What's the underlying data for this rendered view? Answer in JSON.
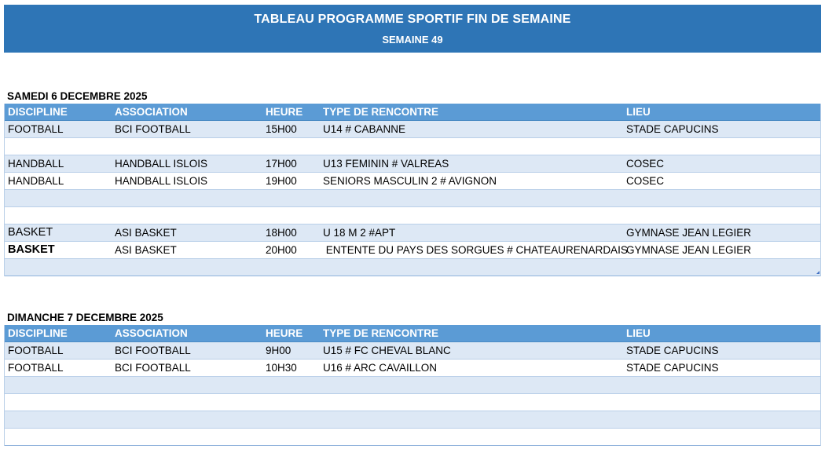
{
  "header": {
    "title": "TABLEAU PROGRAMME SPORTIF FIN DE SEMAINE",
    "subtitle": "SEMAINE 49"
  },
  "columns": {
    "discipline": "DISCIPLINE",
    "association": "ASSOCIATION",
    "heure": "HEURE",
    "type": "TYPE DE RENCONTRE",
    "lieu": "LIEU"
  },
  "saturday": {
    "title": "SAMEDI 6 DECEMBRE 2025",
    "rows": [
      {
        "discipline": "FOOTBALL",
        "association": "BCI FOOTBALL",
        "heure": "15H00",
        "type": "U14 # CABANNE",
        "lieu": "STADE CAPUCINS"
      },
      {
        "discipline": "",
        "association": "",
        "heure": "",
        "type": "",
        "lieu": ""
      },
      {
        "discipline": "HANDBALL",
        "association": "HANDBALL ISLOIS",
        "heure": "17H00",
        "type": "U13 FEMININ # VALREAS",
        "lieu": "COSEC"
      },
      {
        "discipline": "HANDBALL",
        "association": "HANDBALL ISLOIS",
        "heure": "19H00",
        "type": "SENIORS MASCULIN 2 # AVIGNON",
        "lieu": "COSEC"
      },
      {
        "discipline": "",
        "association": "",
        "heure": "",
        "type": "",
        "lieu": ""
      },
      {
        "discipline": "",
        "association": "",
        "heure": "",
        "type": "",
        "lieu": ""
      },
      {
        "discipline": "BASKET",
        "association": "ASI BASKET",
        "heure": "18H00",
        "type": "U 18 M 2 #APT",
        "lieu": "GYMNASE JEAN LEGIER"
      },
      {
        "discipline": "BASKET",
        "association": "ASI BASKET",
        "heure": "20H00",
        "type": " ENTENTE DU PAYS DES SORGUES # CHATEAURENARDAIS",
        "lieu": "GYMNASE JEAN LEGIER"
      },
      {
        "discipline": "",
        "association": "",
        "heure": "",
        "type": "",
        "lieu": ""
      }
    ]
  },
  "sunday": {
    "title": "DIMANCHE 7 DECEMBRE 2025",
    "rows": [
      {
        "discipline": "FOOTBALL",
        "association": "BCI FOOTBALL",
        "heure": "9H00",
        "type": "U15 # FC CHEVAL BLANC",
        "lieu": "STADE CAPUCINS"
      },
      {
        "discipline": "FOOTBALL",
        "association": "BCI FOOTBALL",
        "heure": "10H30",
        "type": "U16 # ARC CAVAILLON",
        "lieu": "STADE CAPUCINS"
      },
      {
        "discipline": "",
        "association": "",
        "heure": "",
        "type": "",
        "lieu": ""
      },
      {
        "discipline": "",
        "association": "",
        "heure": "",
        "type": "",
        "lieu": ""
      },
      {
        "discipline": "",
        "association": "",
        "heure": "",
        "type": "",
        "lieu": ""
      },
      {
        "discipline": "",
        "association": "",
        "heure": "",
        "type": "",
        "lieu": ""
      }
    ]
  },
  "colors": {
    "banner": "#2e75b6",
    "table_header": "#5b9bd5",
    "band_row": "#dde8f5"
  },
  "icons": {
    "table_resize": "table-resize-handle-icon"
  }
}
